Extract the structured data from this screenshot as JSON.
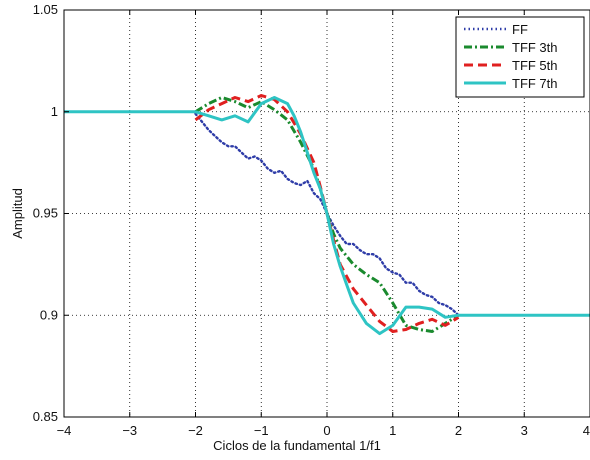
{
  "chart_data": {
    "type": "line",
    "xlabel": "Ciclos de la fundamental 1/f1",
    "ylabel": "Amplitud",
    "xlim": [
      -4,
      4
    ],
    "ylim": [
      0.85,
      1.05
    ],
    "xticks": [
      -4,
      -3,
      -2,
      -1,
      0,
      1,
      2,
      3,
      4
    ],
    "xtick_labels": [
      "−4",
      "−3",
      "−2",
      "−1",
      "0",
      "1",
      "2",
      "3",
      "4"
    ],
    "yticks": [
      0.85,
      0.9,
      0.95,
      1.0,
      1.05
    ],
    "ytick_labels": [
      "0.85",
      "0.9",
      "0.95",
      "1",
      "1.05"
    ],
    "grid": true,
    "legend_position": "top-right",
    "series": [
      {
        "name": "FF",
        "color": "#2f3da8",
        "dash": "dotted",
        "x": [
          -2.0,
          -1.9,
          -1.8,
          -1.7,
          -1.6,
          -1.5,
          -1.4,
          -1.3,
          -1.2,
          -1.1,
          -1.0,
          -0.9,
          -0.8,
          -0.7,
          -0.6,
          -0.5,
          -0.4,
          -0.3,
          -0.2,
          -0.1,
          0.0,
          0.1,
          0.2,
          0.3,
          0.4,
          0.5,
          0.6,
          0.7,
          0.8,
          0.9,
          1.0,
          1.1,
          1.2,
          1.3,
          1.4,
          1.5,
          1.6,
          1.7,
          1.8,
          1.9,
          2.0
        ],
        "y": [
          0.999,
          0.995,
          0.991,
          0.988,
          0.985,
          0.983,
          0.983,
          0.98,
          0.977,
          0.978,
          0.976,
          0.972,
          0.97,
          0.971,
          0.967,
          0.965,
          0.964,
          0.966,
          0.96,
          0.957,
          0.95,
          0.944,
          0.939,
          0.935,
          0.935,
          0.932,
          0.93,
          0.93,
          0.928,
          0.923,
          0.921,
          0.92,
          0.916,
          0.916,
          0.912,
          0.91,
          0.909,
          0.906,
          0.905,
          0.903,
          0.9
        ]
      },
      {
        "name": "TFF 3th",
        "color": "#1a8a2e",
        "dash": "dashdot",
        "x": [
          -2.0,
          -1.8,
          -1.6,
          -1.4,
          -1.2,
          -1.0,
          -0.8,
          -0.6,
          -0.4,
          -0.2,
          -0.1,
          0.0,
          0.1,
          0.2,
          0.4,
          0.6,
          0.8,
          1.0,
          1.2,
          1.4,
          1.6,
          1.8,
          2.0
        ],
        "y": [
          1.0,
          1.004,
          1.007,
          1.005,
          1.002,
          1.005,
          1.001,
          0.996,
          0.985,
          0.972,
          0.962,
          0.95,
          0.94,
          0.933,
          0.925,
          0.92,
          0.916,
          0.906,
          0.895,
          0.893,
          0.892,
          0.896,
          0.9
        ]
      },
      {
        "name": "TFF 5th",
        "color": "#e02020",
        "dash": "dashed",
        "x": [
          -2.0,
          -1.8,
          -1.6,
          -1.4,
          -1.2,
          -1.0,
          -0.9,
          -0.8,
          -0.6,
          -0.4,
          -0.2,
          -0.1,
          0.0,
          0.1,
          0.2,
          0.4,
          0.6,
          0.8,
          1.0,
          1.2,
          1.4,
          1.6,
          1.8,
          2.0
        ],
        "y": [
          0.996,
          1.001,
          1.004,
          1.007,
          1.005,
          1.008,
          1.007,
          1.006,
          1.0,
          0.989,
          0.975,
          0.963,
          0.95,
          0.937,
          0.925,
          0.913,
          0.905,
          0.897,
          0.892,
          0.893,
          0.896,
          0.898,
          0.895,
          0.899
        ]
      },
      {
        "name": "TFF 7th",
        "color": "#2ec4c4",
        "dash": "solid",
        "x": [
          -4.0,
          -2.0,
          -1.8,
          -1.6,
          -1.4,
          -1.2,
          -1.0,
          -0.8,
          -0.6,
          -0.5,
          -0.4,
          -0.3,
          -0.2,
          -0.1,
          0.0,
          0.1,
          0.2,
          0.3,
          0.4,
          0.6,
          0.8,
          1.0,
          1.2,
          1.4,
          1.6,
          1.8,
          2.0,
          4.0
        ],
        "y": [
          1.0,
          1.0,
          0.998,
          0.996,
          0.998,
          0.995,
          1.004,
          1.007,
          1.004,
          0.998,
          0.99,
          0.98,
          0.97,
          0.962,
          0.95,
          0.935,
          0.924,
          0.915,
          0.906,
          0.896,
          0.891,
          0.895,
          0.904,
          0.904,
          0.903,
          0.899,
          0.9,
          0.9
        ]
      }
    ]
  }
}
